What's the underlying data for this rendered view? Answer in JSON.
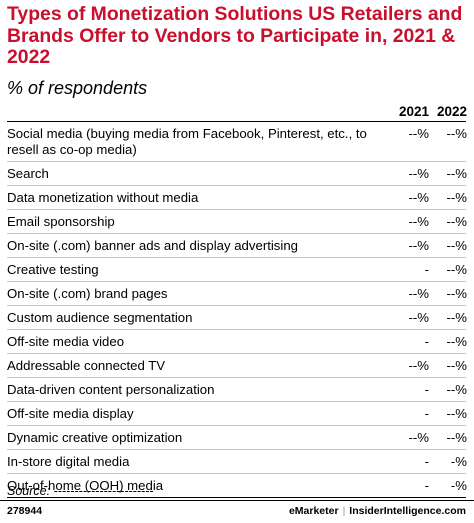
{
  "title": "Types of Monetization Solutions US Retailers and Brands Offer to Vendors to Participate in, 2021 & 2022",
  "subtitle": "% of respondents",
  "chart_data": {
    "type": "table",
    "columns": [
      "2021",
      "2022"
    ],
    "rows": [
      {
        "label": "Social media (buying media from Facebook, Pinterest, etc., to resell as co-op media)",
        "values": [
          "--%",
          "--%"
        ]
      },
      {
        "label": "Search",
        "values": [
          "--%",
          "--%"
        ]
      },
      {
        "label": "Data monetization without media",
        "values": [
          "--%",
          "--%"
        ]
      },
      {
        "label": "Email sponsorship",
        "values": [
          "--%",
          "--%"
        ]
      },
      {
        "label": "On-site (.com) banner ads and display advertising",
        "values": [
          "--%",
          "--%"
        ]
      },
      {
        "label": "Creative testing",
        "values": [
          "-",
          "--%"
        ]
      },
      {
        "label": "On-site (.com) brand pages",
        "values": [
          "--%",
          "--%"
        ]
      },
      {
        "label": "Custom audience segmentation",
        "values": [
          "--%",
          "--%"
        ]
      },
      {
        "label": "Off-site media video",
        "values": [
          "-",
          "--%"
        ]
      },
      {
        "label": "Addressable connected TV",
        "values": [
          "--%",
          "--%"
        ]
      },
      {
        "label": "Data-driven content personalization",
        "values": [
          "-",
          "--%"
        ]
      },
      {
        "label": "Off-site media display",
        "values": [
          "-",
          "--%"
        ]
      },
      {
        "label": "Dynamic creative optimization",
        "values": [
          "--%",
          "--%"
        ]
      },
      {
        "label": "In-store digital media",
        "values": [
          "-",
          "-%"
        ]
      },
      {
        "label": "Out-of-home (OOH) media",
        "values": [
          "-",
          "-%"
        ]
      }
    ]
  },
  "source": "Source: ------------------------",
  "footer": {
    "chart_id": "278944",
    "brand1": "eMarketer",
    "separator": "|",
    "brand2": "InsiderIntelligence.com"
  }
}
